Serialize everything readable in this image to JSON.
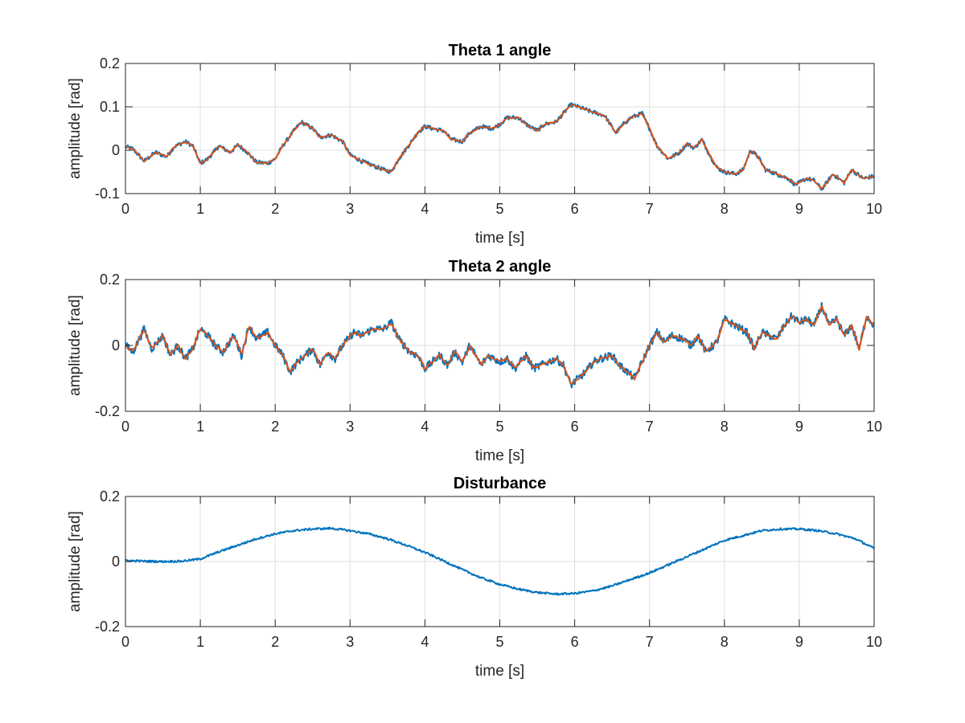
{
  "chart_data": [
    {
      "type": "line",
      "title": "Theta 1 angle",
      "xlabel": "time [s]",
      "ylabel": "amplitude [rad]",
      "xlim": [
        0,
        10
      ],
      "ylim": [
        -0.1,
        0.2
      ],
      "xticks": [
        0,
        1,
        2,
        3,
        4,
        5,
        6,
        7,
        8,
        9,
        10
      ],
      "xtick_labels": [
        "0",
        "1",
        "2",
        "3",
        "4",
        "5",
        "6",
        "7",
        "8",
        "9",
        "10"
      ],
      "yticks": [
        -0.1,
        0,
        0.1,
        0.2
      ],
      "ytick_labels": [
        "-0.1",
        "0",
        "0.1",
        "0.2"
      ],
      "grid": true,
      "colors": [
        "#0072BD",
        "#D95319"
      ],
      "noise": [
        0.005,
        0.0015
      ],
      "series": [
        {
          "x": [
            0,
            0.1,
            0.25,
            0.4,
            0.55,
            0.65,
            0.8,
            0.9,
            1.0,
            1.1,
            1.25,
            1.4,
            1.5,
            1.6,
            1.75,
            1.9,
            2.0,
            2.1,
            2.25,
            2.35,
            2.5,
            2.6,
            2.75,
            2.9,
            3.0,
            3.15,
            3.3,
            3.45,
            3.55,
            3.65,
            3.8,
            3.9,
            4.0,
            4.1,
            4.25,
            4.35,
            4.5,
            4.6,
            4.75,
            4.9,
            5.0,
            5.1,
            5.25,
            5.35,
            5.5,
            5.6,
            5.75,
            5.85,
            5.95,
            6.05,
            6.2,
            6.3,
            6.4,
            6.55,
            6.65,
            6.75,
            6.9,
            7.0,
            7.1,
            7.25,
            7.4,
            7.5,
            7.6,
            7.7,
            7.8,
            7.9,
            8.0,
            8.15,
            8.25,
            8.35,
            8.45,
            8.55,
            8.7,
            8.85,
            8.95,
            9.1,
            9.2,
            9.3,
            9.45,
            9.6,
            9.7,
            9.85,
            10.0
          ],
          "values": [
            0.008,
            0.003,
            -0.025,
            -0.005,
            -0.015,
            0.008,
            0.02,
            0.01,
            -0.03,
            -0.02,
            0.01,
            -0.005,
            0.012,
            0.0,
            -0.028,
            -0.03,
            -0.02,
            0.01,
            0.045,
            0.065,
            0.05,
            0.03,
            0.035,
            0.02,
            -0.01,
            -0.025,
            -0.035,
            -0.045,
            -0.05,
            -0.02,
            0.015,
            0.04,
            0.055,
            0.05,
            0.045,
            0.025,
            0.02,
            0.04,
            0.055,
            0.05,
            0.06,
            0.075,
            0.075,
            0.06,
            0.045,
            0.06,
            0.065,
            0.085,
            0.105,
            0.1,
            0.09,
            0.085,
            0.08,
            0.04,
            0.06,
            0.075,
            0.085,
            0.05,
            0.01,
            -0.02,
            -0.005,
            0.015,
            0.005,
            0.025,
            -0.01,
            -0.04,
            -0.05,
            -0.055,
            -0.045,
            0.0,
            -0.015,
            -0.045,
            -0.055,
            -0.065,
            -0.08,
            -0.065,
            -0.07,
            -0.09,
            -0.055,
            -0.075,
            -0.045,
            -0.065,
            -0.06
          ]
        }
      ]
    },
    {
      "type": "line",
      "title": "Theta 2 angle",
      "xlabel": "time [s]",
      "ylabel": "amplitude [rad]",
      "xlim": [
        0,
        10
      ],
      "ylim": [
        -0.2,
        0.2
      ],
      "xticks": [
        0,
        1,
        2,
        3,
        4,
        5,
        6,
        7,
        8,
        9,
        10
      ],
      "xtick_labels": [
        "0",
        "1",
        "2",
        "3",
        "4",
        "5",
        "6",
        "7",
        "8",
        "9",
        "10"
      ],
      "yticks": [
        -0.2,
        0,
        0.2
      ],
      "ytick_labels": [
        "-0.2",
        "0",
        "0.2"
      ],
      "grid": true,
      "colors": [
        "#0072BD",
        "#D95319"
      ],
      "noise": [
        0.012,
        0.004
      ],
      "series": [
        {
          "x": [
            0,
            0.1,
            0.25,
            0.35,
            0.5,
            0.6,
            0.7,
            0.8,
            0.9,
            1.0,
            1.1,
            1.2,
            1.3,
            1.45,
            1.55,
            1.65,
            1.75,
            1.9,
            2.0,
            2.1,
            2.2,
            2.3,
            2.4,
            2.5,
            2.6,
            2.7,
            2.8,
            2.9,
            3.05,
            3.15,
            3.3,
            3.45,
            3.55,
            3.65,
            3.8,
            3.9,
            4.0,
            4.1,
            4.2,
            4.3,
            4.4,
            4.5,
            4.6,
            4.75,
            4.85,
            5.0,
            5.1,
            5.2,
            5.35,
            5.45,
            5.55,
            5.65,
            5.75,
            5.85,
            5.95,
            6.05,
            6.15,
            6.25,
            6.35,
            6.5,
            6.6,
            6.7,
            6.8,
            6.9,
            7.0,
            7.1,
            7.2,
            7.3,
            7.45,
            7.55,
            7.65,
            7.75,
            7.9,
            8.0,
            8.15,
            8.3,
            8.4,
            8.5,
            8.6,
            8.7,
            8.8,
            8.9,
            9.0,
            9.1,
            9.2,
            9.3,
            9.4,
            9.5,
            9.6,
            9.7,
            9.8,
            9.9,
            10.0
          ],
          "values": [
            0.0,
            -0.02,
            0.05,
            -0.01,
            0.03,
            -0.03,
            0.0,
            -0.04,
            -0.01,
            0.05,
            0.03,
            0.0,
            -0.02,
            0.03,
            -0.03,
            0.06,
            0.02,
            0.04,
            0.0,
            -0.03,
            -0.08,
            -0.05,
            -0.03,
            -0.01,
            -0.06,
            -0.02,
            -0.04,
            0.0,
            0.04,
            0.03,
            0.05,
            0.05,
            0.07,
            0.02,
            -0.02,
            -0.03,
            -0.07,
            -0.05,
            -0.03,
            -0.06,
            -0.02,
            -0.05,
            0.0,
            -0.06,
            -0.03,
            -0.05,
            -0.04,
            -0.07,
            -0.03,
            -0.07,
            -0.06,
            -0.05,
            -0.04,
            -0.06,
            -0.12,
            -0.1,
            -0.08,
            -0.05,
            -0.04,
            -0.03,
            -0.06,
            -0.08,
            -0.1,
            -0.05,
            0.0,
            0.04,
            0.01,
            0.03,
            0.02,
            0.0,
            0.03,
            -0.02,
            0.01,
            0.08,
            0.06,
            0.04,
            -0.01,
            0.04,
            0.03,
            0.02,
            0.06,
            0.09,
            0.07,
            0.08,
            0.06,
            0.12,
            0.06,
            0.08,
            0.03,
            0.06,
            -0.01,
            0.09,
            0.06
          ]
        }
      ]
    },
    {
      "type": "line",
      "title": "Disturbance",
      "xlabel": "time [s]",
      "ylabel": "amplitude [rad]",
      "xlim": [
        0,
        10
      ],
      "ylim": [
        -0.2,
        0.2
      ],
      "xticks": [
        0,
        1,
        2,
        3,
        4,
        5,
        6,
        7,
        8,
        9,
        10
      ],
      "xtick_labels": [
        "0",
        "1",
        "2",
        "3",
        "4",
        "5",
        "6",
        "7",
        "8",
        "9",
        "10"
      ],
      "yticks": [
        -0.2,
        0,
        0.2
      ],
      "ytick_labels": [
        "-0.2",
        "0",
        "0.2"
      ],
      "grid": true,
      "colors": [
        "#0072BD"
      ],
      "noise": [
        0.003
      ],
      "series": [
        {
          "x": [
            0,
            0.25,
            0.5,
            0.75,
            1.0,
            1.25,
            1.5,
            1.75,
            2.0,
            2.25,
            2.5,
            2.75,
            3.0,
            3.25,
            3.5,
            3.75,
            4.0,
            4.25,
            4.5,
            4.75,
            5.0,
            5.25,
            5.5,
            5.75,
            6.0,
            6.25,
            6.5,
            6.75,
            7.0,
            7.25,
            7.5,
            7.75,
            8.0,
            8.25,
            8.5,
            8.75,
            9.0,
            9.25,
            9.5,
            9.75,
            10.0
          ],
          "values": [
            0.003,
            0.001,
            0.0,
            0.001,
            0.008,
            0.03,
            0.05,
            0.07,
            0.085,
            0.095,
            0.1,
            0.102,
            0.095,
            0.085,
            0.07,
            0.05,
            0.028,
            0.002,
            -0.025,
            -0.05,
            -0.07,
            -0.085,
            -0.095,
            -0.1,
            -0.098,
            -0.09,
            -0.075,
            -0.055,
            -0.035,
            -0.01,
            0.015,
            0.04,
            0.065,
            0.08,
            0.095,
            0.1,
            0.1,
            0.095,
            0.085,
            0.07,
            0.04
          ]
        }
      ]
    }
  ]
}
